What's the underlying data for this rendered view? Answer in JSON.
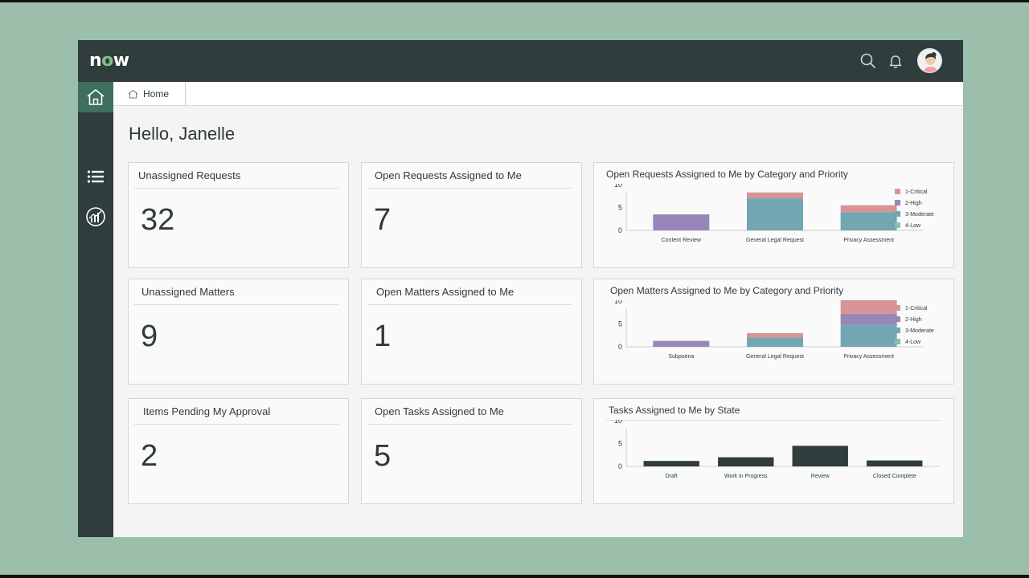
{
  "app": {
    "logo_prefix": "n",
    "logo_o": "o",
    "logo_suffix": "w"
  },
  "tabs": [
    {
      "label": "Home"
    }
  ],
  "greeting": "Hello, Janelle",
  "cards": [
    {
      "title": "Unassigned Requests",
      "value": "32"
    },
    {
      "title": "Open Requests Assigned to Me",
      "value": "7"
    },
    {
      "title": "Unassigned Matters",
      "value": "9"
    },
    {
      "title": "Open Matters Assigned to Me",
      "value": "1"
    },
    {
      "title": "Items Pending My Approval",
      "value": "2"
    },
    {
      "title": "Open Tasks Assigned to Me",
      "value": "5"
    }
  ],
  "colors": {
    "critical": "#d89497",
    "high": "#9787b9",
    "moderate": "#72a6b2",
    "low": "#86c2a6",
    "state_bar": "#2f3d3c"
  },
  "icons": {
    "search": "search-icon",
    "bell": "bell-icon",
    "home": "home-icon",
    "list": "list-icon",
    "analytics": "analytics-icon"
  },
  "chart_data": [
    {
      "type": "bar",
      "stacked": true,
      "title": "Open Requests Assigned to Me by Category and Priority",
      "categories": [
        "Content Review",
        "General Legal Request",
        "Privacy Assessment"
      ],
      "yticks": [
        "0",
        "5",
        "10"
      ],
      "ylim": [
        0,
        10
      ],
      "legend_position": "top-right",
      "series": [
        {
          "name": "4-Low",
          "values": [
            0,
            0,
            0
          ]
        },
        {
          "name": "3-Moderate",
          "values": [
            0,
            7,
            4
          ]
        },
        {
          "name": "2-High",
          "values": [
            3.5,
            0,
            0
          ]
        },
        {
          "name": "1-Critical",
          "values": [
            0,
            1.3,
            1.5
          ]
        }
      ],
      "legend": [
        "1-Critical",
        "2-High",
        "3-Moderate",
        "4-Low"
      ]
    },
    {
      "type": "bar",
      "stacked": true,
      "title": "Open Matters Assigned to Me by Category and Priority",
      "categories": [
        "Subpoena",
        "General Legal Request",
        "Privacy Assessment"
      ],
      "yticks": [
        "0",
        "5",
        "10"
      ],
      "ylim": [
        0,
        10
      ],
      "legend_position": "top-right",
      "series": [
        {
          "name": "4-Low",
          "values": [
            0,
            0,
            0
          ]
        },
        {
          "name": "3-Moderate",
          "values": [
            0,
            2,
            4.8
          ]
        },
        {
          "name": "2-High",
          "values": [
            1.3,
            0,
            2.4
          ]
        },
        {
          "name": "1-Critical",
          "values": [
            0,
            1,
            3.9
          ]
        }
      ],
      "legend": [
        "1-Critical",
        "2-High",
        "3-Moderate",
        "4-Low"
      ]
    },
    {
      "type": "bar",
      "stacked": false,
      "title": "Tasks Assigned to Me by State",
      "categories": [
        "Draft",
        "Work in Progress",
        "Review",
        "Closed Complete"
      ],
      "yticks": [
        "0",
        "5",
        "10"
      ],
      "ylim": [
        0,
        10
      ],
      "series": [
        {
          "values": [
            1.2,
            2,
            4.5,
            1.3
          ]
        }
      ]
    }
  ]
}
